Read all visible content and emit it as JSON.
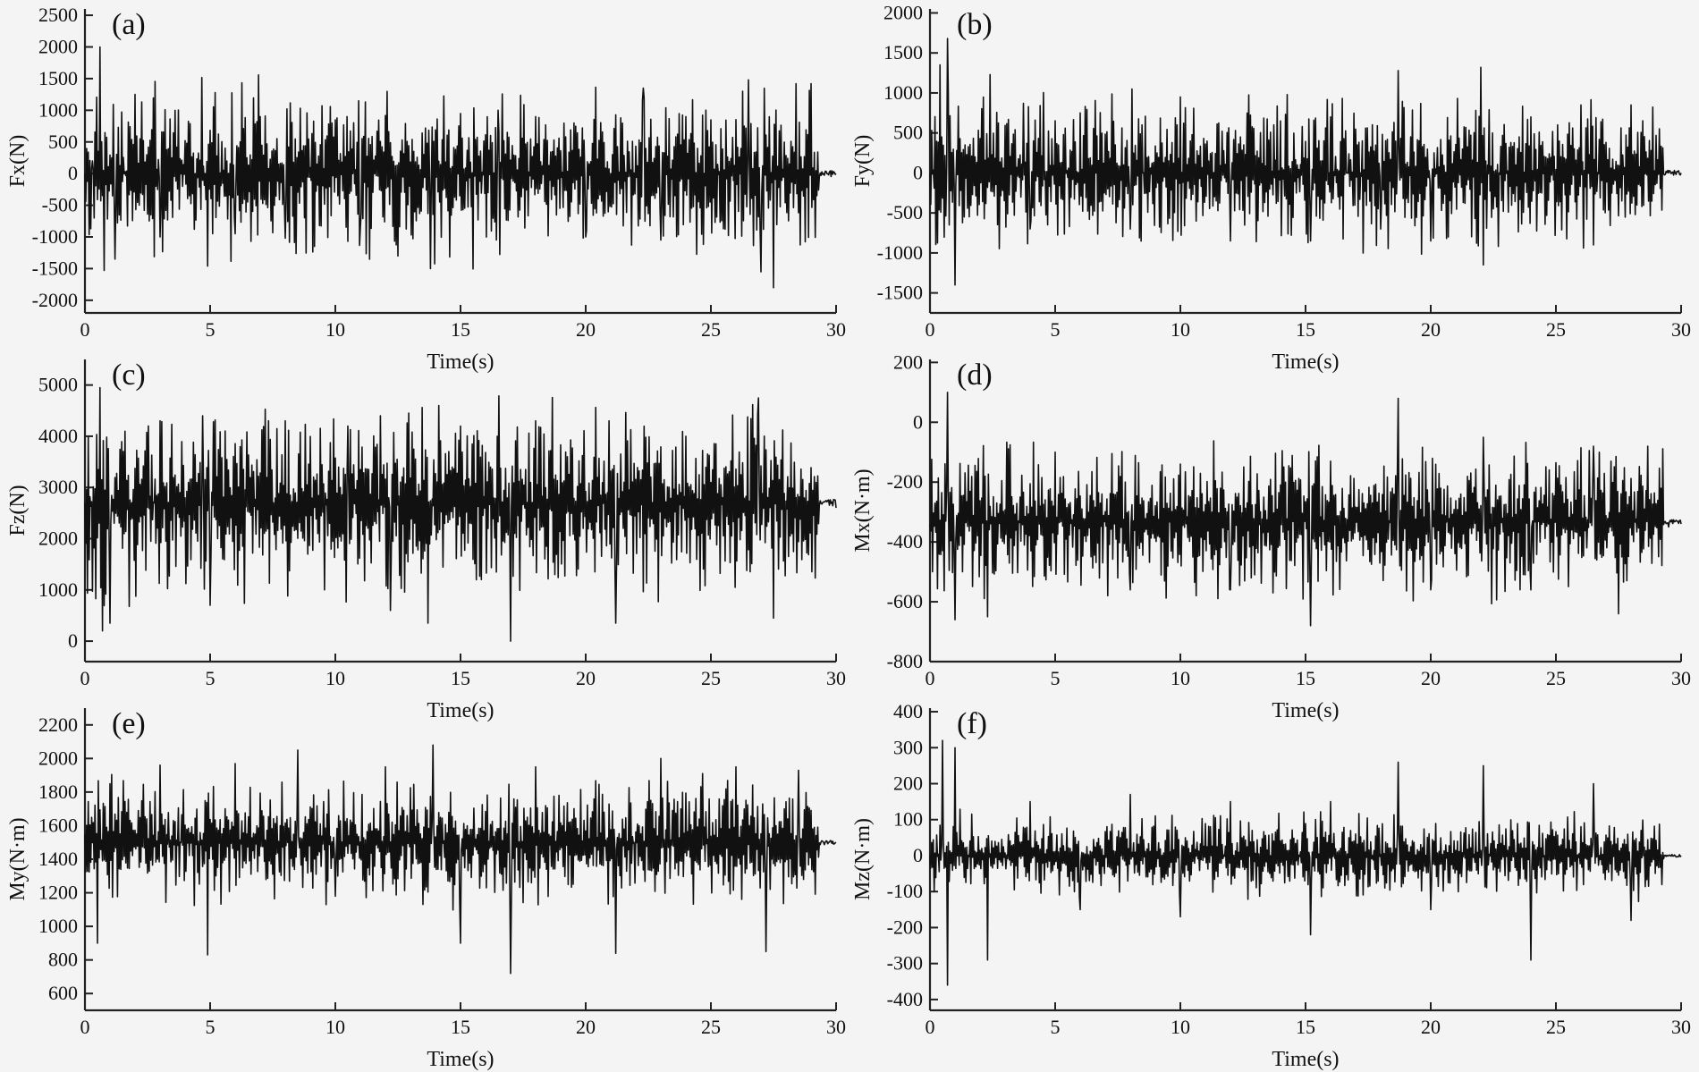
{
  "figure": {
    "background": "#f4f4f4",
    "line_color": "#111111"
  },
  "chart_data": [
    {
      "type": "line",
      "panel_label": "(a)",
      "xlabel": "Time(s)",
      "ylabel": "Fx(N)",
      "xlim": [
        0,
        30
      ],
      "ylim": [
        -2200,
        2600
      ],
      "xticks": [
        0,
        5,
        10,
        15,
        20,
        25,
        30
      ],
      "yticks": [
        -2000,
        -1500,
        -1000,
        -500,
        0,
        500,
        1000,
        1500,
        2000,
        2500
      ],
      "series": [
        {
          "signal": "random vibration around mean",
          "x": [
            0,
            0.3,
            0.6,
            1.2,
            2,
            3,
            5.2,
            6,
            7,
            8,
            10,
            11,
            12.5,
            13.8,
            15,
            16.5,
            18,
            20,
            22.3,
            23,
            24,
            25,
            26.5,
            27,
            27.5,
            28.4,
            29,
            29.5,
            30
          ],
          "y": [
            0,
            200,
            2000,
            -1350,
            1250,
            -1000,
            1280,
            -950,
            900,
            -1020,
            850,
            -850,
            -1300,
            -1500,
            950,
            1000,
            900,
            -1000,
            1350,
            -1050,
            900,
            850,
            1480,
            -1550,
            -1800,
            1420,
            1420,
            0,
            0
          ],
          "mean": 0,
          "typical_amplitude": 650
        }
      ]
    },
    {
      "type": "line",
      "panel_label": "(b)",
      "xlabel": "Time(s)",
      "ylabel": "Fy(N)",
      "xlim": [
        0,
        30
      ],
      "ylim": [
        -1750,
        2050
      ],
      "xticks": [
        0,
        5,
        10,
        15,
        20,
        25,
        30
      ],
      "yticks": [
        -1500,
        -1000,
        -500,
        0,
        500,
        1000,
        1500,
        2000
      ],
      "series": [
        {
          "signal": "random vibration around mean",
          "x": [
            0,
            0.4,
            0.7,
            1,
            2.4,
            4,
            6,
            8,
            10,
            12,
            14,
            15.2,
            16,
            18,
            18.7,
            20,
            22,
            22.1,
            24,
            26,
            26.5,
            28,
            29.5,
            30
          ],
          "y": [
            0,
            1350,
            1680,
            -1400,
            1230,
            -700,
            750,
            -700,
            950,
            -850,
            650,
            -850,
            700,
            -700,
            1280,
            -850,
            1320,
            -1150,
            700,
            850,
            -900,
            850,
            0,
            0
          ],
          "mean": 0,
          "typical_amplitude": 450
        }
      ]
    },
    {
      "type": "line",
      "panel_label": "(c)",
      "xlabel": "Time(s)",
      "ylabel": "Fz(N)",
      "xlim": [
        0,
        30
      ],
      "ylim": [
        -400,
        5500
      ],
      "xticks": [
        0,
        5,
        10,
        15,
        20,
        25,
        30
      ],
      "yticks": [
        0,
        1000,
        2000,
        3000,
        4000,
        5000
      ],
      "series": [
        {
          "signal": "random vibration around mean",
          "x": [
            0,
            0.6,
            0.7,
            1,
            3,
            4.7,
            5,
            8,
            10.5,
            11.8,
            12.2,
            13.7,
            15,
            17,
            18,
            21.2,
            24,
            26.9,
            27.5,
            29.2,
            30
          ],
          "y": [
            2700,
            4950,
            200,
            350,
            4300,
            4400,
            700,
            4300,
            4200,
            4400,
            600,
            350,
            4200,
            0,
            4300,
            350,
            4000,
            4750,
            450,
            3100,
            2600
          ],
          "mean": 2700,
          "typical_amplitude": 900
        }
      ]
    },
    {
      "type": "line",
      "panel_label": "(d)",
      "xlabel": "Time(s)",
      "ylabel": "Mx(N·m)",
      "xlim": [
        0,
        30
      ],
      "ylim": [
        -800,
        210
      ],
      "xticks": [
        0,
        5,
        10,
        15,
        20,
        25,
        30
      ],
      "yticks": [
        -800,
        -600,
        -400,
        -200,
        0,
        200
      ],
      "series": [
        {
          "signal": "random vibration around mean",
          "x": [
            0,
            0.7,
            1,
            2.3,
            5,
            8,
            10,
            12,
            15.2,
            16,
            18.7,
            20,
            22.1,
            24,
            26.5,
            27.5,
            29.5,
            30
          ],
          "y": [
            -340,
            100,
            -660,
            -650,
            -100,
            -560,
            -140,
            -560,
            -680,
            -130,
            80,
            -560,
            -50,
            -560,
            -80,
            -640,
            -350,
            -340
          ],
          "mean": -330,
          "typical_amplitude": 120
        }
      ]
    },
    {
      "type": "line",
      "panel_label": "(e)",
      "xlabel": "Time(s)",
      "ylabel": "My(N·m)",
      "xlim": [
        0,
        30
      ],
      "ylim": [
        500,
        2300
      ],
      "xticks": [
        0,
        5,
        10,
        15,
        20,
        25,
        30
      ],
      "yticks": [
        600,
        800,
        1000,
        1200,
        1400,
        1600,
        1800,
        2000,
        2200
      ],
      "series": [
        {
          "signal": "random vibration around mean",
          "x": [
            0,
            0.5,
            1,
            3,
            4.9,
            6,
            8.5,
            10,
            12,
            13.9,
            15,
            17,
            18,
            21.2,
            23,
            26,
            27.2,
            28.5,
            29.5,
            30
          ],
          "y": [
            1550,
            900,
            1850,
            1960,
            830,
            1970,
            2050,
            1180,
            1950,
            2080,
            900,
            720,
            1950,
            840,
            2000,
            1950,
            850,
            1930,
            1500,
            1500
          ],
          "mean": 1500,
          "typical_amplitude": 180
        }
      ]
    },
    {
      "type": "line",
      "panel_label": "(f)",
      "xlabel": "Time(s)",
      "ylabel": "Mz(N·m)",
      "xlim": [
        0,
        30
      ],
      "ylim": [
        -430,
        410
      ],
      "xticks": [
        0,
        5,
        10,
        15,
        20,
        25,
        30
      ],
      "yticks": [
        -400,
        -300,
        -200,
        -100,
        0,
        100,
        200,
        300,
        400
      ],
      "series": [
        {
          "signal": "random vibration around mean",
          "x": [
            0,
            0.5,
            0.7,
            1,
            2.3,
            4,
            6,
            8,
            10,
            12,
            15.2,
            16,
            18.7,
            20,
            22.1,
            24,
            26.5,
            28,
            29.5,
            30
          ],
          "y": [
            0,
            320,
            -360,
            300,
            -290,
            150,
            -150,
            170,
            -170,
            150,
            -220,
            150,
            260,
            -150,
            250,
            -290,
            200,
            -180,
            0,
            0
          ],
          "mean": 0,
          "typical_amplitude": 55
        }
      ]
    }
  ]
}
